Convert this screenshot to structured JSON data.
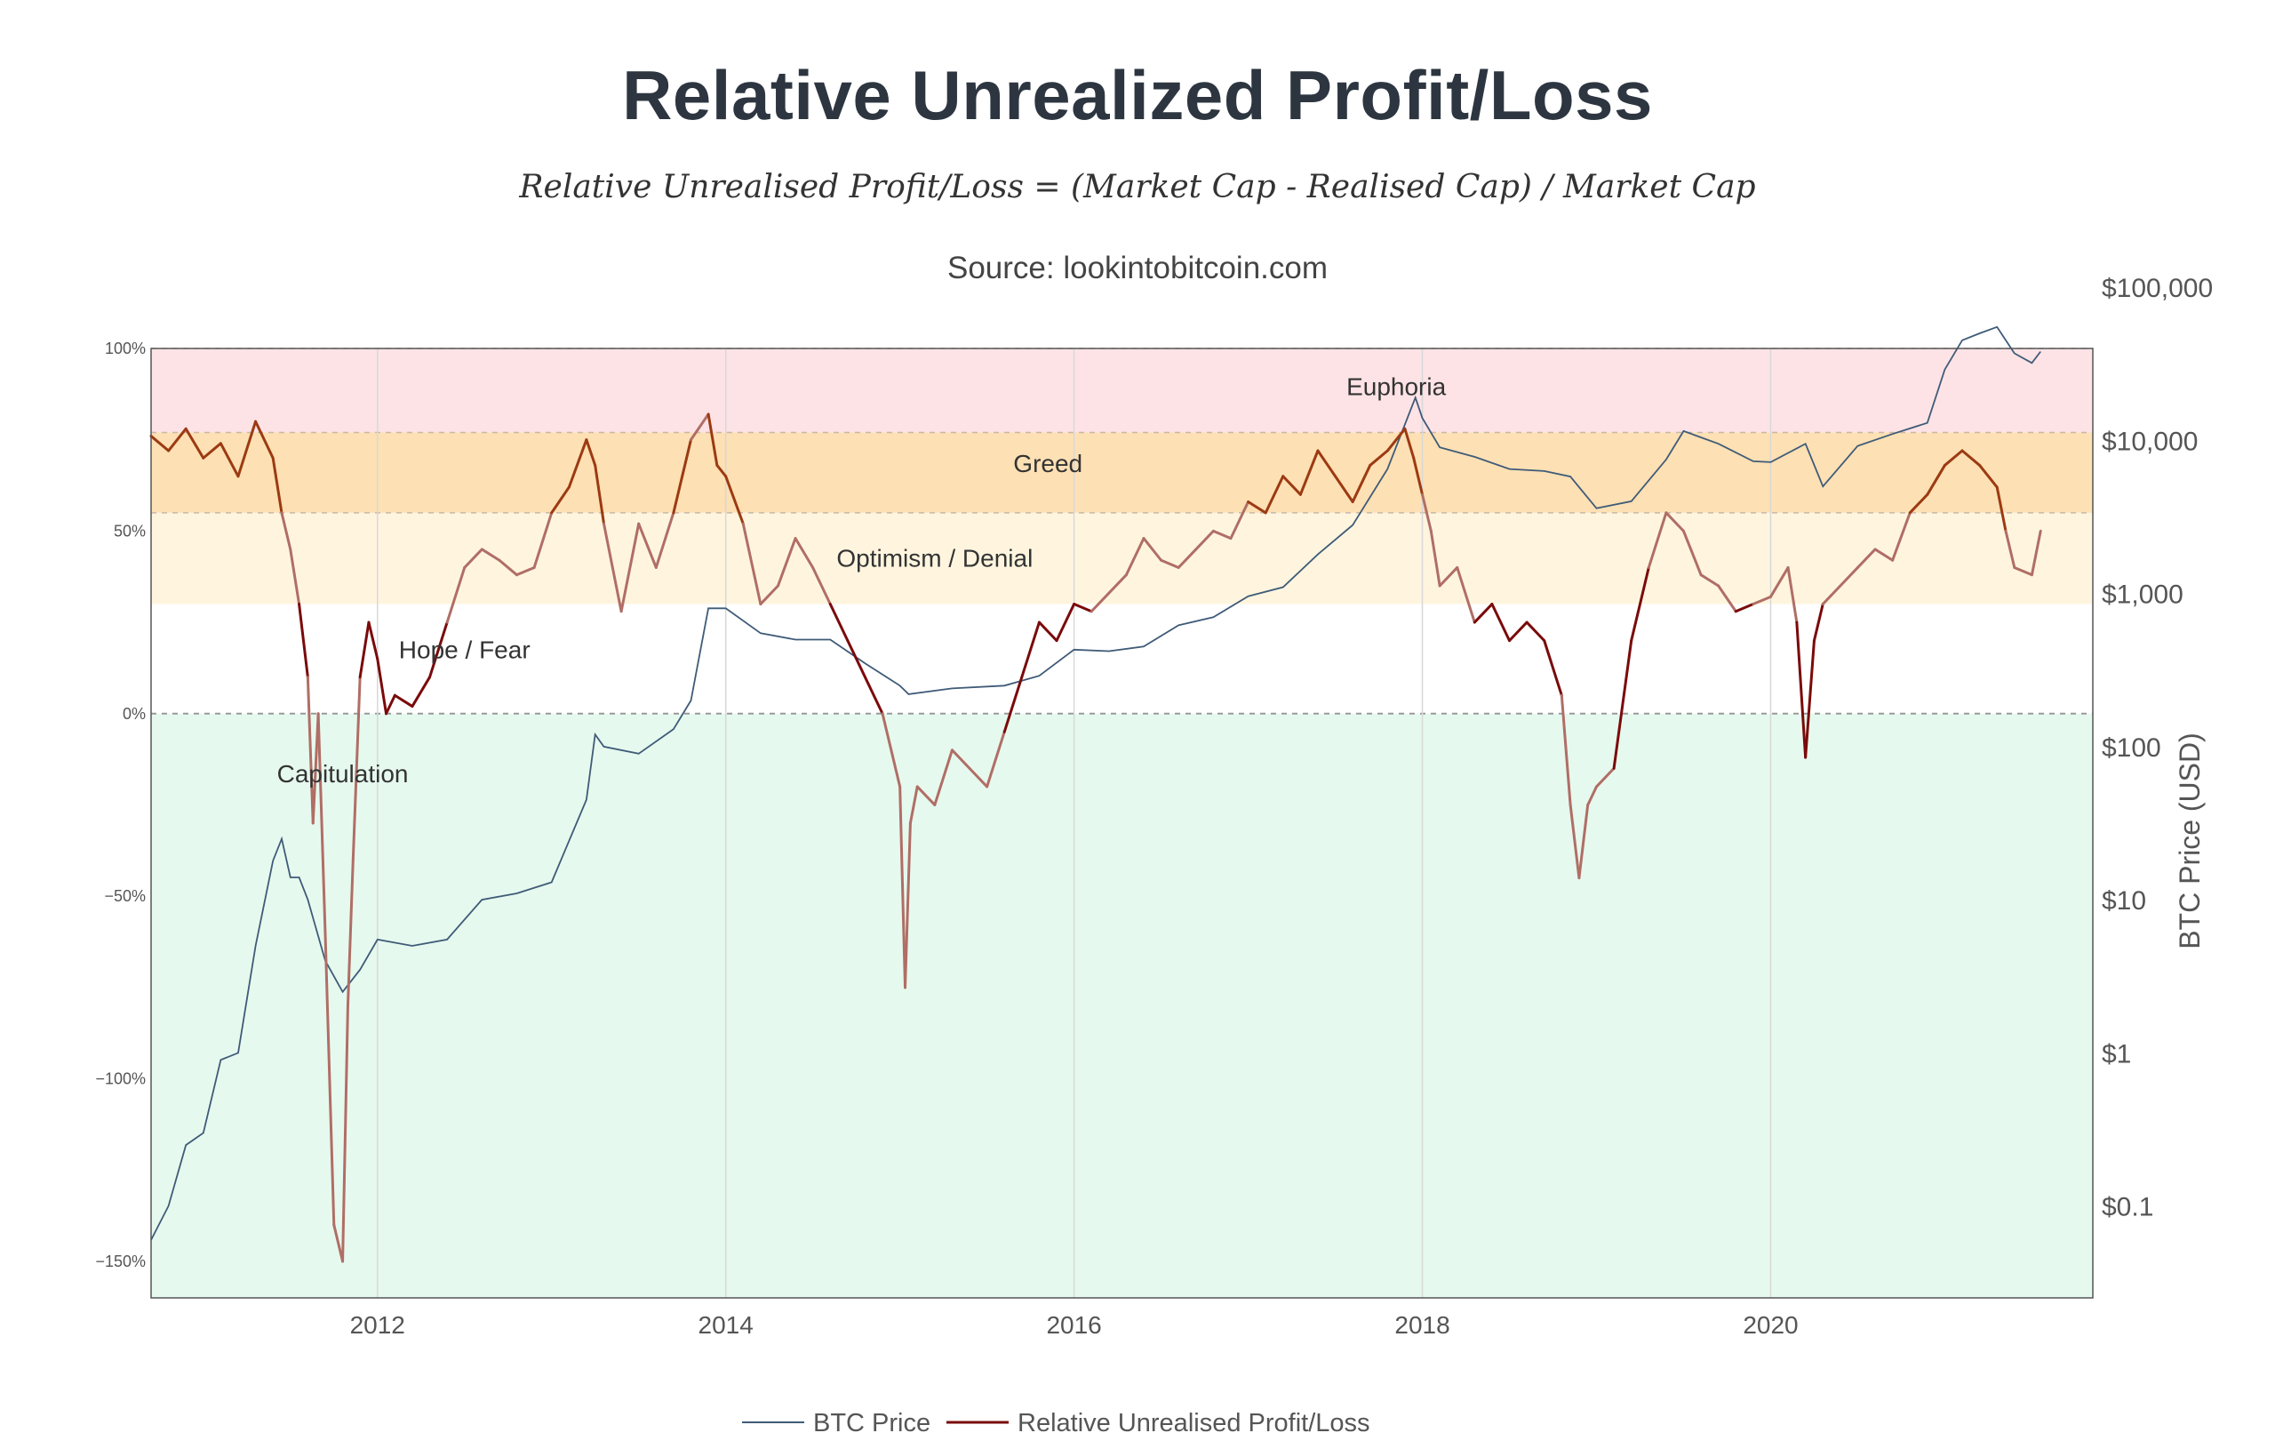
{
  "header": {
    "title": "Relative Unrealized Profit/Loss",
    "formula": "Relative Unrealised Profit/Loss = (Market Cap - Realised Cap) / Market Cap",
    "source": "Source: lookintobitcoin.com"
  },
  "chart_data": {
    "type": "line",
    "title": "Relative Unrealized Profit/Loss",
    "x_ticks": [
      "2012",
      "2014",
      "2016",
      "2018",
      "2020"
    ],
    "x_tick_values": [
      2012,
      2014,
      2016,
      2018,
      2020
    ],
    "xlim": [
      2010.7,
      2021.85
    ],
    "y_left_ticks": [
      "100%",
      "50%",
      "0%",
      "−50%",
      "−100%",
      "−150%"
    ],
    "y_left_tick_values": [
      100,
      50,
      0,
      -50,
      -100,
      -150
    ],
    "y_left_range": [
      -160,
      100
    ],
    "y_right_label": "BTC Price (USD)",
    "y_right_ticks": [
      "$100,000",
      "$10,000",
      "$1,000",
      "$100",
      "$10",
      "$1",
      "$0.1"
    ],
    "y_right_tick_values": [
      100000,
      10000,
      1000,
      100,
      10,
      1,
      0.1
    ],
    "y_right_range_log10": [
      -1.6,
      4.6
    ],
    "bands": [
      {
        "name": "Euphoria",
        "from": 77,
        "to": 100,
        "color": "#fde3e6"
      },
      {
        "name": "Greed",
        "from": 55,
        "to": 77,
        "color": "#fde0b4"
      },
      {
        "name": "Optimism / Denial",
        "from": 30,
        "to": 55,
        "color": "#fff5df"
      },
      {
        "name": "Hope / Fear",
        "from": 0,
        "to": 30,
        "color": "#ffffff"
      },
      {
        "name": "Capitulation",
        "from": -160,
        "to": 0,
        "color": "#e6f9ee"
      }
    ],
    "band_labels": [
      {
        "text": "Euphoria",
        "x": 2017.85,
        "y": 89
      },
      {
        "text": "Greed",
        "x": 2015.85,
        "y": 68
      },
      {
        "text": "Optimism / Denial",
        "x": 2015.2,
        "y": 42
      },
      {
        "text": "Hope / Fear",
        "x": 2012.5,
        "y": 17
      },
      {
        "text": "Capitulation",
        "x": 2011.8,
        "y": -17
      }
    ],
    "legend": [
      "BTC Price",
      "Relative Unrealised Profit/Loss"
    ],
    "colors": {
      "btc_price": "#3f5b78",
      "rupl": "#7a0a0a",
      "rupl_faded": "#b06e66",
      "rupl_mid": "#9c3a12"
    },
    "series": [
      {
        "name": "Relative Unrealised Profit/Loss",
        "axis": "left",
        "x": [
          2010.7,
          2010.8,
          2010.9,
          2011.0,
          2011.1,
          2011.2,
          2011.3,
          2011.4,
          2011.45,
          2011.5,
          2011.55,
          2011.6,
          2011.63,
          2011.66,
          2011.7,
          2011.75,
          2011.8,
          2011.83,
          2011.86,
          2011.9,
          2011.95,
          2012.0,
          2012.05,
          2012.1,
          2012.2,
          2012.3,
          2012.4,
          2012.5,
          2012.6,
          2012.7,
          2012.8,
          2012.9,
          2013.0,
          2013.1,
          2013.2,
          2013.25,
          2013.3,
          2013.4,
          2013.5,
          2013.6,
          2013.7,
          2013.8,
          2013.9,
          2013.95,
          2014.0,
          2014.1,
          2014.2,
          2014.3,
          2014.4,
          2014.5,
          2014.6,
          2014.7,
          2014.8,
          2014.9,
          2015.0,
          2015.03,
          2015.06,
          2015.1,
          2015.2,
          2015.3,
          2015.4,
          2015.5,
          2015.6,
          2015.7,
          2015.8,
          2015.9,
          2016.0,
          2016.1,
          2016.2,
          2016.3,
          2016.4,
          2016.5,
          2016.6,
          2016.7,
          2016.8,
          2016.9,
          2017.0,
          2017.1,
          2017.2,
          2017.3,
          2017.4,
          2017.5,
          2017.6,
          2017.7,
          2017.8,
          2017.9,
          2017.95,
          2018.0,
          2018.05,
          2018.1,
          2018.2,
          2018.3,
          2018.4,
          2018.5,
          2018.6,
          2018.7,
          2018.8,
          2018.85,
          2018.9,
          2018.95,
          2019.0,
          2019.1,
          2019.2,
          2019.3,
          2019.4,
          2019.5,
          2019.6,
          2019.7,
          2019.8,
          2019.9,
          2020.0,
          2020.1,
          2020.15,
          2020.2,
          2020.25,
          2020.3,
          2020.4,
          2020.5,
          2020.6,
          2020.7,
          2020.8,
          2020.9,
          2021.0,
          2021.1,
          2021.2,
          2021.3,
          2021.35,
          2021.4,
          2021.5,
          2021.55
        ],
        "y": [
          76,
          72,
          78,
          70,
          74,
          65,
          80,
          70,
          55,
          45,
          30,
          10,
          -30,
          0,
          -60,
          -140,
          -150,
          -80,
          -40,
          10,
          25,
          15,
          0,
          5,
          2,
          10,
          25,
          40,
          45,
          42,
          38,
          40,
          55,
          62,
          75,
          68,
          52,
          28,
          52,
          40,
          55,
          75,
          82,
          68,
          65,
          52,
          30,
          35,
          48,
          40,
          30,
          20,
          10,
          0,
          -20,
          -75,
          -30,
          -20,
          -25,
          -10,
          -15,
          -20,
          -5,
          10,
          25,
          20,
          30,
          28,
          33,
          38,
          48,
          42,
          40,
          45,
          50,
          48,
          58,
          55,
          65,
          60,
          72,
          65,
          58,
          68,
          72,
          78,
          70,
          60,
          50,
          35,
          40,
          25,
          30,
          20,
          25,
          20,
          5,
          -25,
          -45,
          -25,
          -20,
          -15,
          20,
          40,
          55,
          50,
          38,
          35,
          28,
          30,
          32,
          40,
          25,
          -12,
          20,
          30,
          35,
          40,
          45,
          42,
          55,
          60,
          68,
          72,
          68,
          62,
          50,
          40,
          38,
          50
        ]
      },
      {
        "name": "BTC Price",
        "axis": "right",
        "x": [
          2010.7,
          2010.8,
          2010.9,
          2011.0,
          2011.1,
          2011.2,
          2011.3,
          2011.4,
          2011.45,
          2011.5,
          2011.55,
          2011.6,
          2011.7,
          2011.8,
          2011.9,
          2012.0,
          2012.2,
          2012.4,
          2012.6,
          2012.8,
          2013.0,
          2013.2,
          2013.25,
          2013.3,
          2013.5,
          2013.7,
          2013.8,
          2013.9,
          2014.0,
          2014.2,
          2014.4,
          2014.6,
          2014.8,
          2015.0,
          2015.05,
          2015.3,
          2015.6,
          2015.8,
          2016.0,
          2016.2,
          2016.4,
          2016.6,
          2016.8,
          2017.0,
          2017.2,
          2017.4,
          2017.6,
          2017.8,
          2017.96,
          2018.0,
          2018.1,
          2018.3,
          2018.5,
          2018.7,
          2018.85,
          2019.0,
          2019.2,
          2019.4,
          2019.5,
          2019.7,
          2019.9,
          2020.0,
          2020.2,
          2020.3,
          2020.5,
          2020.7,
          2020.9,
          2021.0,
          2021.1,
          2021.2,
          2021.3,
          2021.4,
          2021.5,
          2021.55
        ],
        "y": [
          0.06,
          0.1,
          0.25,
          0.3,
          0.9,
          1.0,
          5,
          18,
          25,
          14,
          14,
          10,
          4,
          2.5,
          3.5,
          5.5,
          5,
          5.5,
          10,
          11,
          13,
          45,
          120,
          100,
          90,
          130,
          200,
          800,
          800,
          550,
          500,
          500,
          350,
          250,
          220,
          240,
          250,
          290,
          430,
          420,
          450,
          620,
          700,
          960,
          1100,
          1800,
          2800,
          6500,
          19000,
          14000,
          9000,
          7800,
          6500,
          6300,
          5800,
          3600,
          4000,
          7500,
          11500,
          9500,
          7300,
          7200,
          9500,
          5000,
          9200,
          11000,
          13000,
          29000,
          45000,
          50000,
          55000,
          37000,
          32000,
          38000
        ]
      }
    ]
  }
}
